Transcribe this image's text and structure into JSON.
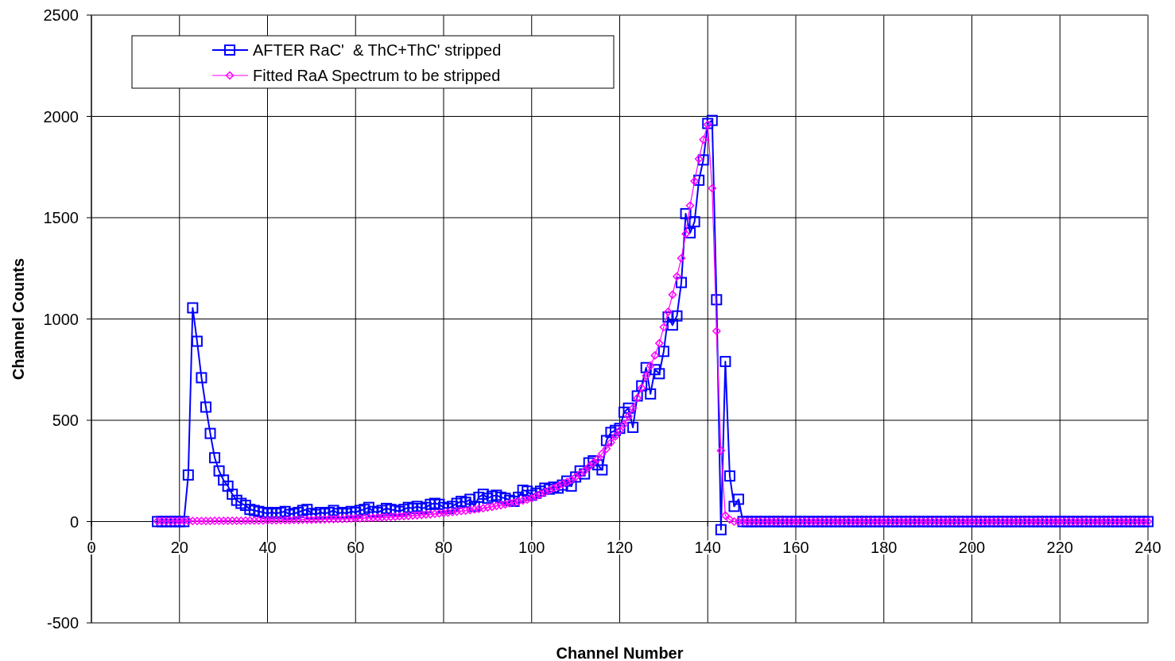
{
  "chart_data": {
    "type": "line",
    "xlabel": "Channel Number",
    "ylabel": "Channel Counts",
    "xlim": [
      0,
      240
    ],
    "xticks": [
      0,
      20,
      40,
      60,
      80,
      100,
      120,
      140,
      160,
      180,
      200,
      220,
      240
    ],
    "ylim": [
      -500,
      2500
    ],
    "yticks": [
      -500,
      0,
      500,
      1000,
      1500,
      2000,
      2500
    ],
    "grid": true,
    "legend": "top left",
    "x": [
      15,
      16,
      17,
      18,
      19,
      20,
      21,
      22,
      23,
      24,
      25,
      26,
      27,
      28,
      29,
      30,
      31,
      32,
      33,
      34,
      35,
      36,
      37,
      38,
      39,
      40,
      41,
      42,
      43,
      44,
      45,
      46,
      47,
      48,
      49,
      50,
      51,
      52,
      53,
      54,
      55,
      56,
      57,
      58,
      59,
      60,
      61,
      62,
      63,
      64,
      65,
      66,
      67,
      68,
      69,
      70,
      71,
      72,
      73,
      74,
      75,
      76,
      77,
      78,
      79,
      80,
      81,
      82,
      83,
      84,
      85,
      86,
      87,
      88,
      89,
      90,
      91,
      92,
      93,
      94,
      95,
      96,
      97,
      98,
      99,
      100,
      101,
      102,
      103,
      104,
      105,
      106,
      107,
      108,
      109,
      110,
      111,
      112,
      113,
      114,
      115,
      116,
      117,
      118,
      119,
      120,
      121,
      122,
      123,
      124,
      125,
      126,
      127,
      128,
      129,
      130,
      131,
      132,
      133,
      134,
      135,
      136,
      137,
      138,
      139,
      140,
      141,
      142,
      143,
      144,
      145,
      146,
      147,
      148,
      149,
      150,
      151,
      152,
      153,
      154,
      155,
      156,
      157,
      158,
      159,
      160,
      161,
      162,
      163,
      164,
      165,
      166,
      167,
      168,
      169,
      170,
      171,
      172,
      173,
      174,
      175,
      176,
      177,
      178,
      179,
      180,
      181,
      182,
      183,
      184,
      185,
      186,
      187,
      188,
      189,
      190,
      191,
      192,
      193,
      194,
      195,
      196,
      197,
      198,
      199,
      200,
      201,
      202,
      203,
      204,
      205,
      206,
      207,
      208,
      209,
      210,
      211,
      212,
      213,
      214,
      215,
      216,
      217,
      218,
      219,
      220,
      221,
      222,
      223,
      224,
      225,
      226,
      227,
      228,
      229,
      230,
      231,
      232,
      233,
      234,
      235,
      236,
      237,
      238,
      239,
      240
    ],
    "series": [
      {
        "name": "AFTER RaC'  & ThC+ThC' stripped",
        "color": "#0000ff",
        "marker": "square",
        "values": [
          0,
          0,
          0,
          0,
          0,
          0,
          0,
          230,
          1055,
          890,
          710,
          565,
          435,
          315,
          250,
          205,
          175,
          135,
          105,
          90,
          80,
          60,
          55,
          50,
          45,
          40,
          45,
          40,
          45,
          50,
          35,
          40,
          45,
          55,
          60,
          40,
          35,
          45,
          40,
          45,
          55,
          40,
          45,
          40,
          50,
          45,
          55,
          60,
          70,
          50,
          45,
          55,
          65,
          60,
          55,
          50,
          60,
          70,
          65,
          75,
          65,
          70,
          85,
          90,
          85,
          70,
          65,
          75,
          90,
          100,
          95,
          110,
          75,
          120,
          135,
          115,
          125,
          130,
          120,
          115,
          105,
          100,
          120,
          155,
          150,
          130,
          140,
          150,
          165,
          160,
          170,
          165,
          180,
          200,
          175,
          220,
          250,
          235,
          290,
          300,
          280,
          255,
          400,
          440,
          450,
          460,
          540,
          560,
          465,
          620,
          670,
          760,
          630,
          750,
          730,
          840,
          1010,
          970,
          1015,
          1180,
          1520,
          1425,
          1480,
          1685,
          1785,
          1965,
          1980,
          1095,
          -40,
          790,
          225,
          75,
          110,
          0,
          0,
          0,
          0,
          0,
          0,
          0,
          0,
          0,
          0,
          0,
          0,
          0,
          0,
          0,
          0,
          0,
          0,
          0,
          0,
          0,
          0,
          0,
          0,
          0,
          0,
          0,
          0,
          0,
          0,
          0,
          0,
          0,
          0,
          0,
          0,
          0,
          0,
          0,
          0,
          0,
          0,
          0,
          0,
          0,
          0,
          0,
          0,
          0,
          0,
          0,
          0,
          0,
          0,
          0,
          0,
          0,
          0,
          0,
          0,
          0,
          0,
          0,
          0,
          0,
          0,
          0,
          0,
          0,
          0,
          0,
          0,
          0,
          0,
          0,
          0,
          0,
          0,
          0,
          0,
          0,
          0,
          0,
          0,
          0,
          0,
          0,
          0,
          0,
          0,
          0,
          0,
          0
        ]
      },
      {
        "name": "Fitted RaA Spectrum to be stripped",
        "color": "#ff00ff",
        "marker": "diamond",
        "values": [
          2,
          2,
          2,
          2,
          2,
          3,
          3,
          3,
          3,
          3,
          3,
          3,
          3,
          4,
          4,
          4,
          4,
          4,
          4,
          4,
          5,
          5,
          5,
          5,
          5,
          6,
          6,
          6,
          7,
          7,
          7,
          8,
          8,
          9,
          9,
          9,
          10,
          10,
          11,
          12,
          12,
          13,
          13,
          14,
          15,
          16,
          16,
          17,
          18,
          19,
          20,
          21,
          22,
          23,
          24,
          26,
          27,
          28,
          30,
          31,
          33,
          35,
          36,
          38,
          40,
          42,
          44,
          47,
          49,
          52,
          54,
          57,
          60,
          63,
          66,
          70,
          73,
          77,
          81,
          85,
          90,
          94,
          99,
          104,
          109,
          115,
          125,
          135,
          145,
          155,
          165,
          175,
          185,
          195,
          205,
          220,
          235,
          250,
          270,
          290,
          310,
          335,
          360,
          390,
          420,
          450,
          480,
          520,
          560,
          610,
          660,
          720,
          770,
          820,
          880,
          960,
          1035,
          1120,
          1210,
          1300,
          1420,
          1560,
          1680,
          1790,
          1885,
          1960,
          1645,
          940,
          350,
          30,
          10,
          0,
          0,
          0,
          0,
          0,
          0,
          0,
          0,
          0,
          0,
          0,
          0,
          0,
          0,
          0,
          0,
          0,
          0,
          0,
          0,
          0,
          0,
          0,
          0,
          0,
          0,
          0,
          0,
          0,
          0,
          0,
          0,
          0,
          0,
          0,
          0,
          0,
          0,
          0,
          0,
          0,
          0,
          0,
          0,
          0,
          0,
          0,
          0,
          0,
          0,
          0,
          0,
          0,
          0,
          0,
          0,
          0,
          0,
          0,
          0,
          0,
          0,
          0,
          0,
          0,
          0,
          0,
          0,
          0,
          0,
          0,
          0,
          0,
          0,
          0,
          0,
          0,
          0,
          0,
          0,
          0,
          0,
          0,
          0,
          0,
          0,
          0,
          0,
          0,
          0,
          0,
          0,
          0,
          0,
          0
        ]
      }
    ]
  }
}
